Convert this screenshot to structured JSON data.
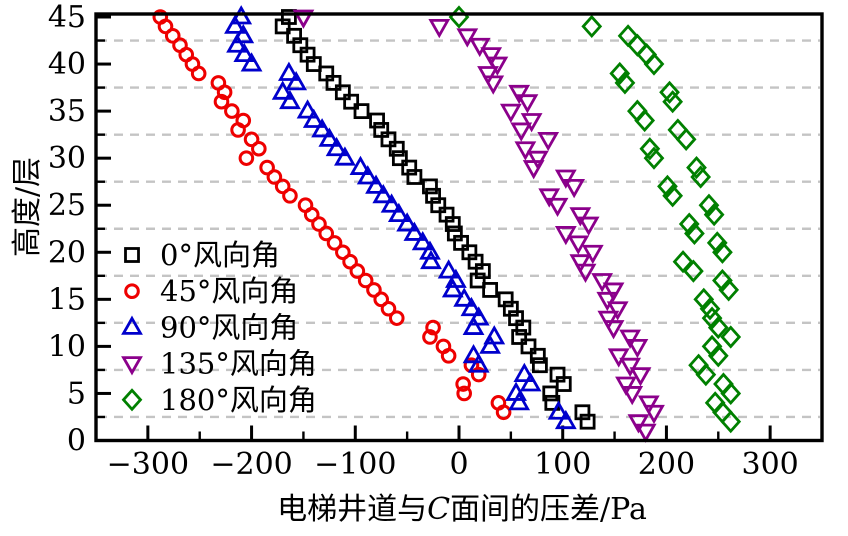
{
  "chart_data": {
    "type": "scatter",
    "title": "",
    "ylabel": "高度/层",
    "xlabel_prefix": "电梯井道与",
    "xlabel_italic": "C",
    "xlabel_suffix": "面间的压差/Pa",
    "xlim": [
      -350,
      350
    ],
    "ylim": [
      0,
      45
    ],
    "x_ticks": [
      -300,
      -200,
      -100,
      0,
      100,
      200,
      300
    ],
    "x_tick_labels": [
      "−300",
      "−200",
      "−100",
      "0",
      "100",
      "200",
      "300"
    ],
    "y_ticks": [
      0,
      5,
      10,
      15,
      20,
      25,
      30,
      35,
      40,
      45
    ],
    "y_tick_labels": [
      "0",
      "5",
      "10",
      "15",
      "20",
      "25",
      "30",
      "35",
      "40",
      "45"
    ],
    "x_minor_step": 50,
    "y_minor_step": 2.5,
    "grid": "horizontal dashed lines at y minor ticks",
    "grid_color": "#c4c4c4",
    "axis_color": "#000000",
    "legend_position": "inside left-middle",
    "series": [
      {
        "label": "0°风向角",
        "marker": "square",
        "color": "#000000",
        "points": [
          [
            -164,
            45
          ],
          [
            -170,
            44
          ],
          [
            -159,
            43
          ],
          [
            -153,
            42
          ],
          [
            -146,
            41
          ],
          [
            -140,
            40
          ],
          [
            -128,
            39
          ],
          [
            -121,
            38
          ],
          [
            -112,
            37
          ],
          [
            -104,
            36
          ],
          [
            -94,
            35
          ],
          [
            -79,
            34
          ],
          [
            -75,
            33
          ],
          [
            -68,
            32
          ],
          [
            -60,
            31
          ],
          [
            -57,
            30
          ],
          [
            -48,
            29
          ],
          [
            -43,
            28
          ],
          [
            -28,
            27
          ],
          [
            -25,
            26
          ],
          [
            -20,
            25
          ],
          [
            -12,
            24
          ],
          [
            -6,
            23
          ],
          [
            -4,
            22
          ],
          [
            2,
            21
          ],
          [
            10,
            20
          ],
          [
            16,
            19
          ],
          [
            23,
            18
          ],
          [
            18,
            17
          ],
          [
            30,
            16
          ],
          [
            45,
            15
          ],
          [
            50,
            14
          ],
          [
            55,
            13
          ],
          [
            62,
            12
          ],
          [
            58,
            11
          ],
          [
            67,
            10
          ],
          [
            76,
            9
          ],
          [
            78,
            8
          ],
          [
            95,
            7
          ],
          [
            101,
            6
          ],
          [
            88,
            5
          ],
          [
            90,
            4
          ],
          [
            119,
            3
          ],
          [
            124,
            2
          ]
        ]
      },
      {
        "label": "45°风向角",
        "marker": "circle",
        "color": "#ee0000",
        "points": [
          [
            -288,
            45
          ],
          [
            -283,
            44
          ],
          [
            -276,
            43
          ],
          [
            -269,
            42
          ],
          [
            -263,
            41
          ],
          [
            -257,
            40
          ],
          [
            -251,
            39
          ],
          [
            -232,
            38
          ],
          [
            -226,
            37
          ],
          [
            -229,
            36
          ],
          [
            -219,
            35
          ],
          [
            -208,
            34
          ],
          [
            -213,
            33
          ],
          [
            -200,
            32
          ],
          [
            -193,
            31
          ],
          [
            -205,
            30
          ],
          [
            -185,
            29
          ],
          [
            -178,
            28
          ],
          [
            -170,
            27
          ],
          [
            -163,
            26
          ],
          [
            -148,
            25
          ],
          [
            -142,
            24
          ],
          [
            -135,
            23
          ],
          [
            -128,
            22
          ],
          [
            -120,
            21
          ],
          [
            -112,
            20
          ],
          [
            -105,
            19
          ],
          [
            -98,
            18
          ],
          [
            -90,
            17
          ],
          [
            -82,
            16
          ],
          [
            -75,
            15
          ],
          [
            -68,
            14
          ],
          [
            -60,
            13
          ],
          [
            -25,
            12
          ],
          [
            -28,
            11
          ],
          [
            -15,
            10
          ],
          [
            -10,
            9
          ],
          [
            12,
            8
          ],
          [
            19,
            7
          ],
          [
            4,
            6
          ],
          [
            5,
            5
          ],
          [
            38,
            4
          ],
          [
            43,
            3
          ]
        ]
      },
      {
        "label": "90°风向角",
        "marker": "triangle-up",
        "color": "#0000cc",
        "points": [
          [
            -210,
            45
          ],
          [
            -216,
            44
          ],
          [
            -208,
            43
          ],
          [
            -214,
            42
          ],
          [
            -207,
            41
          ],
          [
            -200,
            40
          ],
          [
            -164,
            39
          ],
          [
            -157,
            38
          ],
          [
            -170,
            37
          ],
          [
            -163,
            36
          ],
          [
            -146,
            35
          ],
          [
            -140,
            34
          ],
          [
            -132,
            33
          ],
          [
            -125,
            32
          ],
          [
            -118,
            31
          ],
          [
            -110,
            30
          ],
          [
            -95,
            29
          ],
          [
            -88,
            28
          ],
          [
            -80,
            27
          ],
          [
            -73,
            26
          ],
          [
            -65,
            25
          ],
          [
            -58,
            24
          ],
          [
            -50,
            23
          ],
          [
            -43,
            22
          ],
          [
            -35,
            21
          ],
          [
            -28,
            20
          ],
          [
            -27,
            19
          ],
          [
            -10,
            18
          ],
          [
            -3,
            17
          ],
          [
            -6,
            16
          ],
          [
            5,
            15
          ],
          [
            12,
            14
          ],
          [
            19,
            13
          ],
          [
            14,
            12
          ],
          [
            34,
            11
          ],
          [
            30,
            10
          ],
          [
            14,
            9
          ],
          [
            19,
            8
          ],
          [
            63,
            7
          ],
          [
            69,
            6
          ],
          [
            55,
            5
          ],
          [
            58,
            4
          ],
          [
            96,
            3
          ],
          [
            103,
            2
          ]
        ]
      },
      {
        "label": "135°风向角",
        "marker": "triangle-down",
        "color": "#8b008b",
        "points": [
          [
            -150,
            45
          ],
          [
            -19,
            44
          ],
          [
            8,
            43
          ],
          [
            20,
            42
          ],
          [
            31,
            41
          ],
          [
            37,
            40
          ],
          [
            28,
            39
          ],
          [
            33,
            38
          ],
          [
            58,
            37
          ],
          [
            66,
            36
          ],
          [
            50,
            35
          ],
          [
            70,
            34
          ],
          [
            60,
            33
          ],
          [
            86,
            32
          ],
          [
            64,
            31
          ],
          [
            76,
            30
          ],
          [
            72,
            29
          ],
          [
            103,
            28
          ],
          [
            111,
            27
          ],
          [
            87,
            26
          ],
          [
            95,
            25
          ],
          [
            117,
            24
          ],
          [
            125,
            23
          ],
          [
            103,
            22
          ],
          [
            115,
            21
          ],
          [
            129,
            20
          ],
          [
            117,
            19
          ],
          [
            122,
            18
          ],
          [
            138,
            17
          ],
          [
            149,
            16
          ],
          [
            143,
            15
          ],
          [
            153,
            14
          ],
          [
            144,
            13
          ],
          [
            149,
            12
          ],
          [
            165,
            11
          ],
          [
            172,
            10
          ],
          [
            154,
            9
          ],
          [
            165,
            8
          ],
          [
            175,
            7
          ],
          [
            161,
            6
          ],
          [
            167,
            5
          ],
          [
            183,
            4
          ],
          [
            188,
            3
          ],
          [
            173,
            2
          ],
          [
            180,
            1
          ]
        ]
      },
      {
        "label": "180°风向角",
        "marker": "diamond",
        "color": "#008000",
        "points": [
          [
            0,
            45
          ],
          [
            128,
            44
          ],
          [
            163,
            43
          ],
          [
            172,
            42
          ],
          [
            181,
            41
          ],
          [
            188,
            40
          ],
          [
            155,
            39
          ],
          [
            160,
            38
          ],
          [
            203,
            37
          ],
          [
            206,
            36
          ],
          [
            172,
            35
          ],
          [
            179,
            34
          ],
          [
            211,
            33
          ],
          [
            219,
            32
          ],
          [
            184,
            31
          ],
          [
            188,
            30
          ],
          [
            229,
            29
          ],
          [
            233,
            28
          ],
          [
            201,
            27
          ],
          [
            206,
            26
          ],
          [
            241,
            25
          ],
          [
            246,
            24
          ],
          [
            222,
            23
          ],
          [
            227,
            22
          ],
          [
            249,
            21
          ],
          [
            254,
            20
          ],
          [
            216,
            19
          ],
          [
            226,
            18
          ],
          [
            254,
            17
          ],
          [
            260,
            16
          ],
          [
            236,
            15
          ],
          [
            242,
            14
          ],
          [
            244,
            13
          ],
          [
            250,
            12
          ],
          [
            262,
            11
          ],
          [
            244,
            10
          ],
          [
            250,
            9
          ],
          [
            231,
            8
          ],
          [
            238,
            7
          ],
          [
            255,
            6
          ],
          [
            262,
            5
          ],
          [
            247,
            4
          ],
          [
            254,
            3
          ],
          [
            262,
            2
          ]
        ]
      }
    ]
  }
}
